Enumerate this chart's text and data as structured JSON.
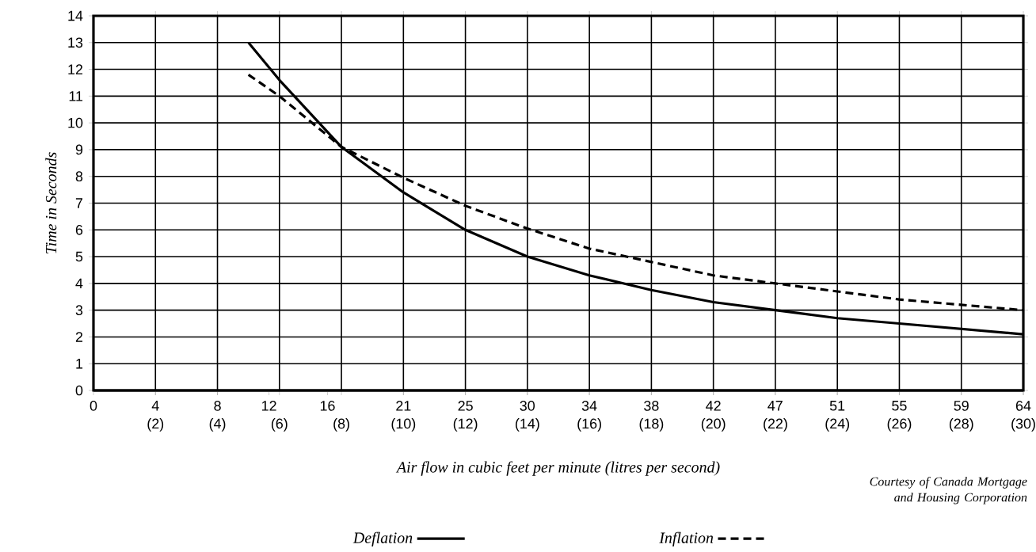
{
  "chart_data": {
    "type": "line",
    "xlabel": "Air flow in cubic feet per minute (litres per second)",
    "ylabel": "Time in Seconds",
    "annotations": [
      "Courtesy of Canada Mortgage and Housing Corporation"
    ],
    "xlim": [
      0,
      30
    ],
    "ylim": [
      0,
      14
    ],
    "xticks": [
      {
        "value": 2,
        "label": "(2)"
      },
      {
        "value": 4,
        "label": "(4)"
      },
      {
        "value": 6,
        "label": "(6)"
      },
      {
        "value": 8,
        "label": "(8)"
      },
      {
        "value": 10,
        "label": "(10)"
      },
      {
        "value": 12,
        "label": "(12)"
      },
      {
        "value": 14,
        "label": "(14)"
      },
      {
        "value": 16,
        "label": "(16)"
      },
      {
        "value": 18,
        "label": "(18)"
      },
      {
        "value": 20,
        "label": "(20)"
      },
      {
        "value": 22,
        "label": "(22)"
      },
      {
        "value": 24,
        "label": "(24)"
      },
      {
        "value": 26,
        "label": "(26)"
      },
      {
        "value": 28,
        "label": "(28)"
      },
      {
        "value": 30,
        "label": "(30)"
      }
    ],
    "x2lim": [
      0,
      63.57
    ],
    "x2ticks": [
      0,
      {
        "value": 4.24,
        "label": "4"
      },
      {
        "value": 8.48,
        "label": "8"
      },
      12,
      16,
      {
        "value": 21.19,
        "label": "21"
      },
      {
        "value": 25.43,
        "label": "25"
      },
      {
        "value": 29.66,
        "label": "30"
      },
      {
        "value": 33.9,
        "label": "34"
      },
      {
        "value": 38.14,
        "label": "38"
      },
      {
        "value": 42.38,
        "label": "42"
      },
      {
        "value": 46.61,
        "label": "47"
      },
      {
        "value": 50.85,
        "label": "51"
      },
      {
        "value": 55.09,
        "label": "55"
      },
      {
        "value": 59.33,
        "label": "59"
      },
      {
        "value": 63.57,
        "label": "64"
      }
    ],
    "yticks": [
      0,
      1,
      2,
      3,
      4,
      5,
      6,
      7,
      8,
      9,
      10,
      11,
      12,
      13,
      14
    ],
    "grid": true,
    "legend": "bottom",
    "marker": "none",
    "series": [
      {
        "name": "Deflation",
        "color": "#000000",
        "line_style": "solid",
        "x": [
          5.0,
          6,
          8,
          10,
          12,
          14,
          16,
          18,
          20,
          22,
          24,
          26,
          28,
          30
        ],
        "values": [
          13.0,
          11.6,
          9.1,
          7.4,
          6.0,
          5.0,
          4.3,
          3.75,
          3.3,
          3.0,
          2.7,
          2.5,
          2.3,
          2.1
        ]
      },
      {
        "name": "Inflation",
        "color": "#000000",
        "line_style": "dashed",
        "x": [
          5.0,
          6,
          8,
          10,
          12,
          14,
          16,
          18,
          20,
          22,
          24,
          26,
          28,
          30
        ],
        "values": [
          11.8,
          11.0,
          9.1,
          7.95,
          6.9,
          6.05,
          5.3,
          4.8,
          4.3,
          4.0,
          3.7,
          3.4,
          3.2,
          3.0
        ]
      }
    ]
  }
}
